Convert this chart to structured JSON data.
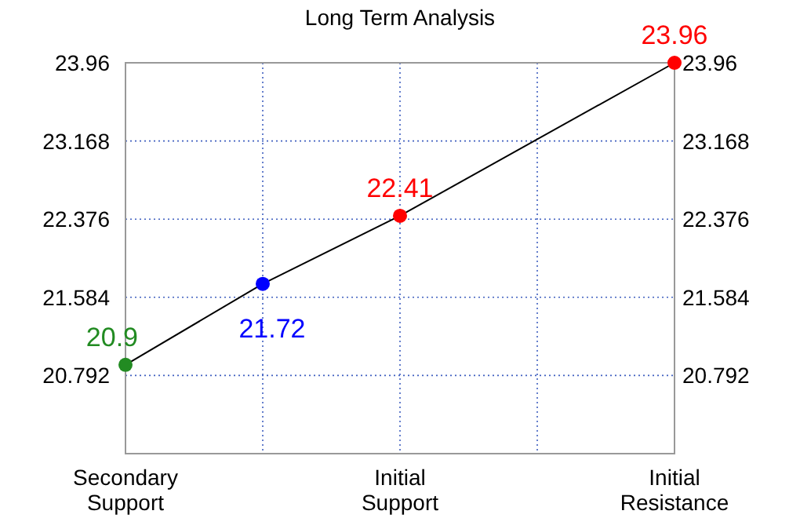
{
  "chart_data": {
    "type": "line",
    "title": "Long Term Analysis",
    "categories": [
      "Secondary Support",
      null,
      null,
      null,
      "Initial Support",
      null,
      null,
      null,
      "Initial Resistance"
    ],
    "ylim": [
      20,
      23.96
    ],
    "yticks": [
      20.792,
      21.584,
      22.376,
      23.168,
      23.96
    ],
    "y2lim": [
      20,
      23.96
    ],
    "y2ticks": [
      20.792,
      21.584,
      22.376,
      23.168,
      23.96
    ],
    "grid": true,
    "series": [
      {
        "color": "#000000",
        "marker": "none",
        "values": [
          20.9,
          null,
          21.72,
          null,
          22.41,
          null,
          null,
          null,
          23.96
        ]
      },
      {
        "type": "scatter",
        "marker": "circle",
        "colors": [
          "#228b22",
          null,
          "#0000ff",
          null,
          "#ff0000",
          null,
          null,
          null,
          "#ff0000"
        ],
        "data_labels": true,
        "values": [
          20.9,
          null,
          21.72,
          null,
          22.41,
          null,
          null,
          null,
          23.96
        ]
      }
    ]
  }
}
